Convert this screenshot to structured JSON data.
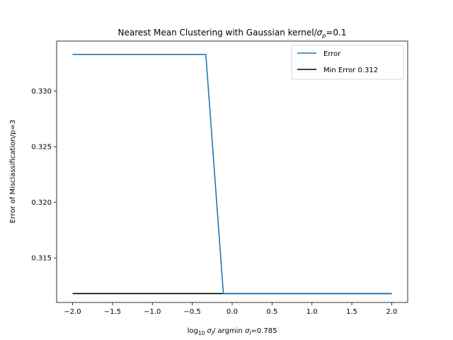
{
  "chart_data": {
    "type": "line",
    "title_prefix": "Nearest Mean Clustering with Gaussian kernel/",
    "title_sigma": "σ",
    "title_sub": "p",
    "title_suffix": "=0.1",
    "xlabel": {
      "part1": "log",
      "part1_sub": "10",
      "part2": " ",
      "sigma1": "σ",
      "sub1": "l",
      "part3": "/ argmin ",
      "sigma2": "σ",
      "sub2": "l",
      "part4": "=0.785"
    },
    "ylabel": "Error of Misclassification/p=3",
    "xlim": [
      -2.2,
      2.2
    ],
    "ylim": [
      0.311,
      0.3345
    ],
    "xticks": [
      -2.0,
      -1.5,
      -1.0,
      -0.5,
      0.0,
      0.5,
      1.0,
      1.5,
      2.0
    ],
    "xtick_labels": [
      "−2.0",
      "−1.5",
      "−1.0",
      "−0.5",
      "0.0",
      "0.5",
      "1.0",
      "1.5",
      "2.0"
    ],
    "yticks": [
      0.315,
      0.32,
      0.325,
      0.33
    ],
    "ytick_labels": [
      "0.315",
      "0.320",
      "0.325",
      "0.330"
    ],
    "series": [
      {
        "name": "Error",
        "color": "#1f77b4",
        "x": [
          -2.0,
          -0.33,
          -0.11,
          2.0
        ],
        "y": [
          0.3333,
          0.3333,
          0.3118,
          0.3118
        ]
      },
      {
        "name": "Min Error 0.312",
        "color": "#000000",
        "x": [
          -2.0,
          2.0
        ],
        "y": [
          0.3118,
          0.3118
        ]
      }
    ],
    "legend": "top-right",
    "grid": false
  }
}
